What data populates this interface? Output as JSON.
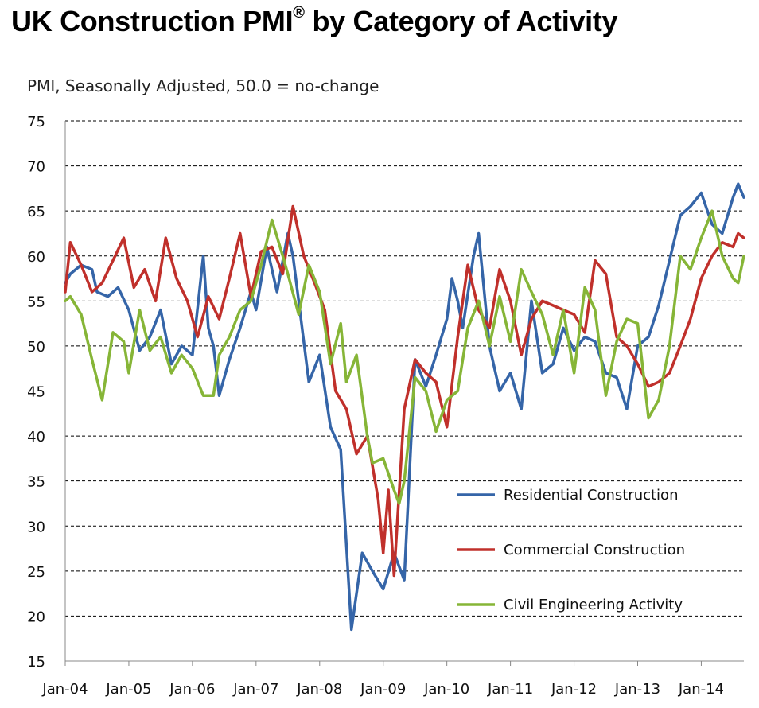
{
  "chart_data": {
    "type": "line",
    "title": "UK Construction PMI",
    "title_mark": "®",
    "title_rest": "by Category of Activity",
    "ylabel": "PMI, Seasonally Adjusted, 50.0 = no-change",
    "xlabel": "",
    "ylim": [
      15,
      75
    ],
    "yticks": [
      15,
      20,
      25,
      30,
      35,
      40,
      45,
      50,
      55,
      60,
      65,
      70,
      75
    ],
    "xlim": [
      2004.0,
      2014.67
    ],
    "categories": [
      "Jan-04",
      "Jan-05",
      "Jan-06",
      "Jan-07",
      "Jan-08",
      "Jan-09",
      "Jan-10",
      "Jan-11",
      "Jan-12",
      "Jan-13",
      "Jan-14"
    ],
    "grid": "horizontal-dashed",
    "legend_position": "lower-right",
    "colors": {
      "residential": "#3565a8",
      "commercial": "#c0302b",
      "civil": "#86b537",
      "grid": "#000000"
    },
    "series": [
      {
        "key": "residential",
        "name": "Residential Construction",
        "x": [
          2004.0,
          2004.08,
          2004.25,
          2004.42,
          2004.5,
          2004.67,
          2004.83,
          2005.0,
          2005.17,
          2005.33,
          2005.5,
          2005.67,
          2005.83,
          2006.0,
          2006.17,
          2006.25,
          2006.33,
          2006.42,
          2006.58,
          2006.75,
          2006.92,
          2007.0,
          2007.17,
          2007.33,
          2007.5,
          2007.58,
          2007.67,
          2007.83,
          2008.0,
          2008.17,
          2008.33,
          2008.5,
          2008.67,
          2008.83,
          2009.0,
          2009.17,
          2009.33,
          2009.5,
          2009.67,
          2009.83,
          2010.0,
          2010.08,
          2010.17,
          2010.25,
          2010.42,
          2010.5,
          2010.67,
          2010.83,
          2011.0,
          2011.17,
          2011.33,
          2011.5,
          2011.67,
          2011.83,
          2012.0,
          2012.17,
          2012.33,
          2012.5,
          2012.67,
          2012.83,
          2013.0,
          2013.17,
          2013.33,
          2013.5,
          2013.67,
          2013.83,
          2014.0,
          2014.17,
          2014.33,
          2014.5,
          2014.58,
          2014.67
        ],
        "values": [
          57.0,
          58.0,
          59.0,
          58.5,
          56.0,
          55.5,
          56.5,
          54.0,
          49.5,
          51.0,
          54.0,
          48.0,
          50.0,
          49.0,
          60.0,
          52.0,
          50.0,
          44.5,
          48.5,
          52.0,
          56.0,
          54.0,
          61.0,
          56.0,
          62.5,
          60.0,
          55.0,
          46.0,
          49.0,
          41.0,
          38.5,
          18.5,
          27.0,
          25.0,
          23.0,
          27.0,
          24.0,
          48.5,
          45.5,
          49.0,
          53.0,
          57.5,
          55.0,
          52.0,
          60.0,
          62.5,
          50.0,
          45.0,
          47.0,
          43.0,
          55.0,
          47.0,
          48.0,
          52.0,
          49.5,
          51.0,
          50.5,
          47.0,
          46.5,
          43.0,
          50.0,
          51.0,
          54.5,
          59.5,
          64.5,
          65.5,
          67.0,
          63.5,
          62.5,
          66.5,
          68.0,
          66.5
        ]
      },
      {
        "key": "commercial",
        "name": "Commercial Construction",
        "x": [
          2004.0,
          2004.08,
          2004.25,
          2004.42,
          2004.58,
          2004.75,
          2004.92,
          2005.08,
          2005.25,
          2005.42,
          2005.58,
          2005.75,
          2005.92,
          2006.08,
          2006.25,
          2006.42,
          2006.58,
          2006.75,
          2006.92,
          2007.08,
          2007.25,
          2007.42,
          2007.58,
          2007.75,
          2007.92,
          2008.08,
          2008.25,
          2008.42,
          2008.58,
          2008.75,
          2008.92,
          2009.0,
          2009.08,
          2009.17,
          2009.33,
          2009.5,
          2009.67,
          2009.83,
          2010.0,
          2010.17,
          2010.33,
          2010.5,
          2010.67,
          2010.83,
          2011.0,
          2011.17,
          2011.33,
          2011.5,
          2011.67,
          2011.83,
          2012.0,
          2012.17,
          2012.33,
          2012.5,
          2012.67,
          2012.83,
          2013.0,
          2013.17,
          2013.33,
          2013.5,
          2013.67,
          2013.83,
          2014.0,
          2014.17,
          2014.33,
          2014.5,
          2014.58,
          2014.67
        ],
        "values": [
          56.0,
          61.5,
          59.0,
          56.0,
          57.0,
          59.5,
          62.0,
          56.5,
          58.5,
          55.0,
          62.0,
          57.5,
          55.0,
          51.0,
          55.5,
          53.0,
          57.5,
          62.5,
          55.5,
          60.5,
          61.0,
          58.0,
          65.5,
          60.0,
          57.0,
          54.0,
          45.0,
          43.0,
          38.0,
          40.0,
          33.0,
          27.0,
          34.0,
          24.5,
          43.0,
          48.5,
          47.0,
          46.0,
          41.0,
          51.0,
          59.0,
          54.0,
          52.0,
          58.5,
          55.0,
          49.0,
          53.0,
          55.0,
          54.5,
          54.0,
          53.5,
          51.5,
          59.5,
          58.0,
          51.0,
          50.0,
          48.0,
          45.5,
          46.0,
          47.0,
          50.0,
          53.0,
          57.5,
          60.0,
          61.5,
          61.0,
          62.5,
          62.0
        ]
      },
      {
        "key": "civil",
        "name": "Civil Engineering Activity",
        "x": [
          2004.0,
          2004.08,
          2004.25,
          2004.42,
          2004.58,
          2004.75,
          2004.92,
          2005.0,
          2005.17,
          2005.33,
          2005.5,
          2005.67,
          2005.83,
          2006.0,
          2006.17,
          2006.33,
          2006.42,
          2006.58,
          2006.75,
          2006.92,
          2007.08,
          2007.25,
          2007.42,
          2007.5,
          2007.67,
          2007.83,
          2008.0,
          2008.17,
          2008.33,
          2008.42,
          2008.58,
          2008.75,
          2008.83,
          2009.0,
          2009.17,
          2009.25,
          2009.33,
          2009.5,
          2009.67,
          2009.83,
          2010.0,
          2010.17,
          2010.33,
          2010.5,
          2010.67,
          2010.83,
          2011.0,
          2011.17,
          2011.33,
          2011.5,
          2011.67,
          2011.83,
          2012.0,
          2012.17,
          2012.33,
          2012.5,
          2012.67,
          2012.83,
          2013.0,
          2013.17,
          2013.33,
          2013.5,
          2013.67,
          2013.83,
          2014.0,
          2014.17,
          2014.33,
          2014.5,
          2014.58,
          2014.67
        ],
        "values": [
          55.0,
          55.5,
          53.5,
          48.5,
          44.0,
          51.5,
          50.5,
          47.0,
          54.0,
          49.5,
          51.0,
          47.0,
          49.0,
          47.5,
          44.5,
          44.5,
          49.0,
          51.0,
          54.0,
          55.0,
          59.0,
          64.0,
          60.0,
          58.0,
          53.5,
          59.0,
          56.0,
          48.0,
          52.5,
          46.0,
          49.0,
          40.0,
          37.0,
          37.5,
          34.0,
          32.5,
          35.0,
          46.5,
          45.0,
          40.5,
          44.0,
          45.0,
          52.0,
          55.0,
          50.0,
          55.5,
          50.5,
          58.5,
          56.0,
          53.5,
          49.0,
          54.0,
          47.0,
          56.5,
          54.0,
          44.5,
          50.5,
          53.0,
          52.5,
          42.0,
          44.0,
          50.0,
          60.0,
          58.5,
          62.0,
          65.0,
          60.0,
          57.5,
          57.0,
          60.0
        ]
      }
    ]
  }
}
